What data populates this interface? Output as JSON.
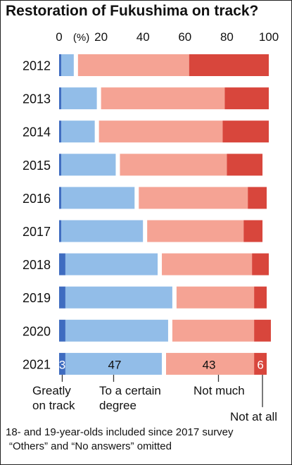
{
  "title": "Restoration of Fukushima on track?",
  "colors": {
    "greatly_on_track": "#3f6cc0",
    "to_a_certain_degree": "#92bde8",
    "not_much": "#f5a394",
    "not_at_all": "#d8463c"
  },
  "chart_data": {
    "type": "bar",
    "orientation": "horizontal",
    "stacked": true,
    "title": "Restoration of Fukushima on track?",
    "xlim": [
      0,
      100
    ],
    "axis_unit": "(%)",
    "x_ticks": [
      "0",
      "20",
      "40",
      "60",
      "80",
      "100"
    ],
    "categories": [
      "2012",
      "2013",
      "2014",
      "2015",
      "2016",
      "2017",
      "2018",
      "2019",
      "2020",
      "2021"
    ],
    "series": [
      {
        "name": "Greatly on track",
        "values": [
          1,
          1,
          1,
          1,
          1,
          1,
          3,
          3,
          3,
          3
        ]
      },
      {
        "name": "To a certain degree",
        "values": [
          7,
          18,
          17,
          27,
          36,
          40,
          45,
          52,
          50,
          47
        ]
      },
      {
        "name": "Not much",
        "values": [
          54,
          60,
          60,
          52,
          53,
          47,
          44,
          38,
          40,
          43
        ]
      },
      {
        "name": "Not at all",
        "values": [
          38,
          21,
          22,
          17,
          9,
          9,
          8,
          6,
          8,
          6
        ]
      }
    ],
    "data_labels": [
      "3",
      "47",
      "43",
      "6"
    ],
    "legend_labels": [
      "Greatly on track",
      "To a certain degree",
      "Not much",
      "Not at all"
    ]
  },
  "footnotes": [
    "18- and 19-year-olds included since 2017 survey",
    "“Others” and “No answers” omitted"
  ]
}
